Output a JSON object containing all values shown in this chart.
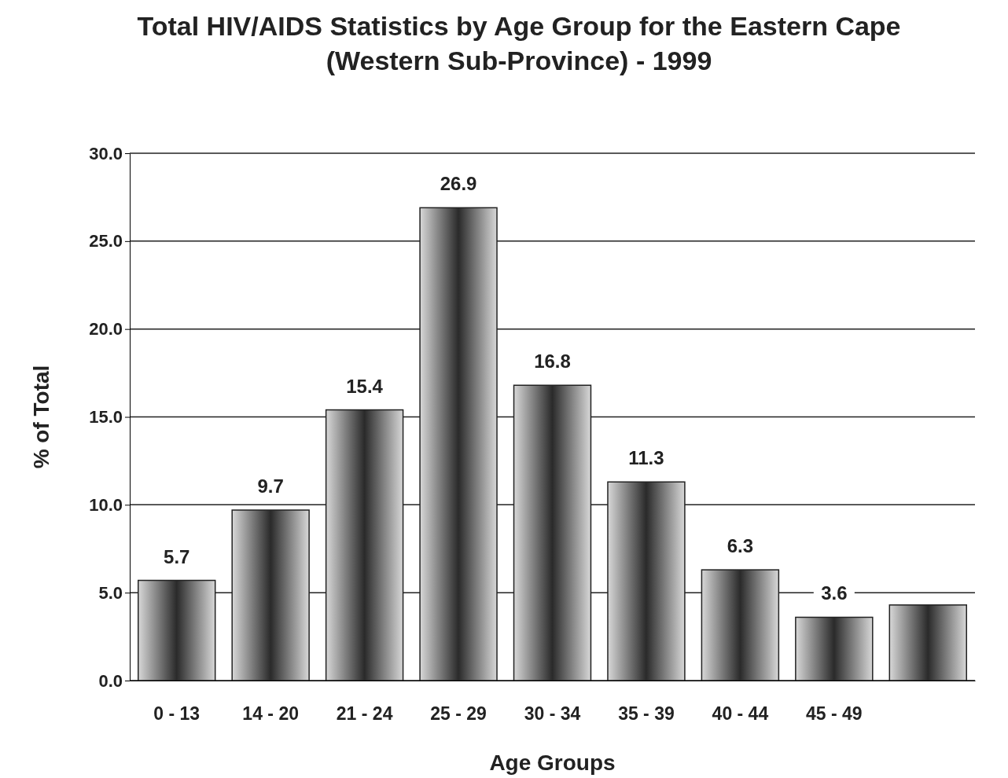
{
  "chart_data": {
    "type": "bar",
    "title": "Total HIV/AIDS Statistics by Age Group for the Eastern Cape (Western Sub-Province) - 1999",
    "xlabel": "Age Groups",
    "ylabel": "% of Total",
    "categories": [
      "0 - 13",
      "14 - 20",
      "21 - 24",
      "25 - 29",
      "30 - 34",
      "35 - 39",
      "40 - 44",
      "45 - 49",
      null
    ],
    "values": [
      5.7,
      9.7,
      15.4,
      26.9,
      16.8,
      11.3,
      6.3,
      3.6,
      4.3
    ],
    "value_labels": [
      "5.7",
      "9.7",
      "15.4",
      "26.9",
      "16.8",
      "11.3",
      "6.3",
      "3.6",
      null
    ],
    "color": "#2a2a2a",
    "ylim": [
      0,
      30
    ],
    "yticks": [
      {
        "value": 0,
        "label": "0.0"
      },
      {
        "value": 5,
        "label": "5.0"
      },
      {
        "value": 10,
        "label": "10.0"
      },
      {
        "value": 15,
        "label": "15.0"
      },
      {
        "value": 20,
        "label": "20.0"
      },
      {
        "value": 25,
        "label": "25.0"
      },
      {
        "value": 30,
        "label": "30.0"
      }
    ],
    "grid": "y"
  }
}
